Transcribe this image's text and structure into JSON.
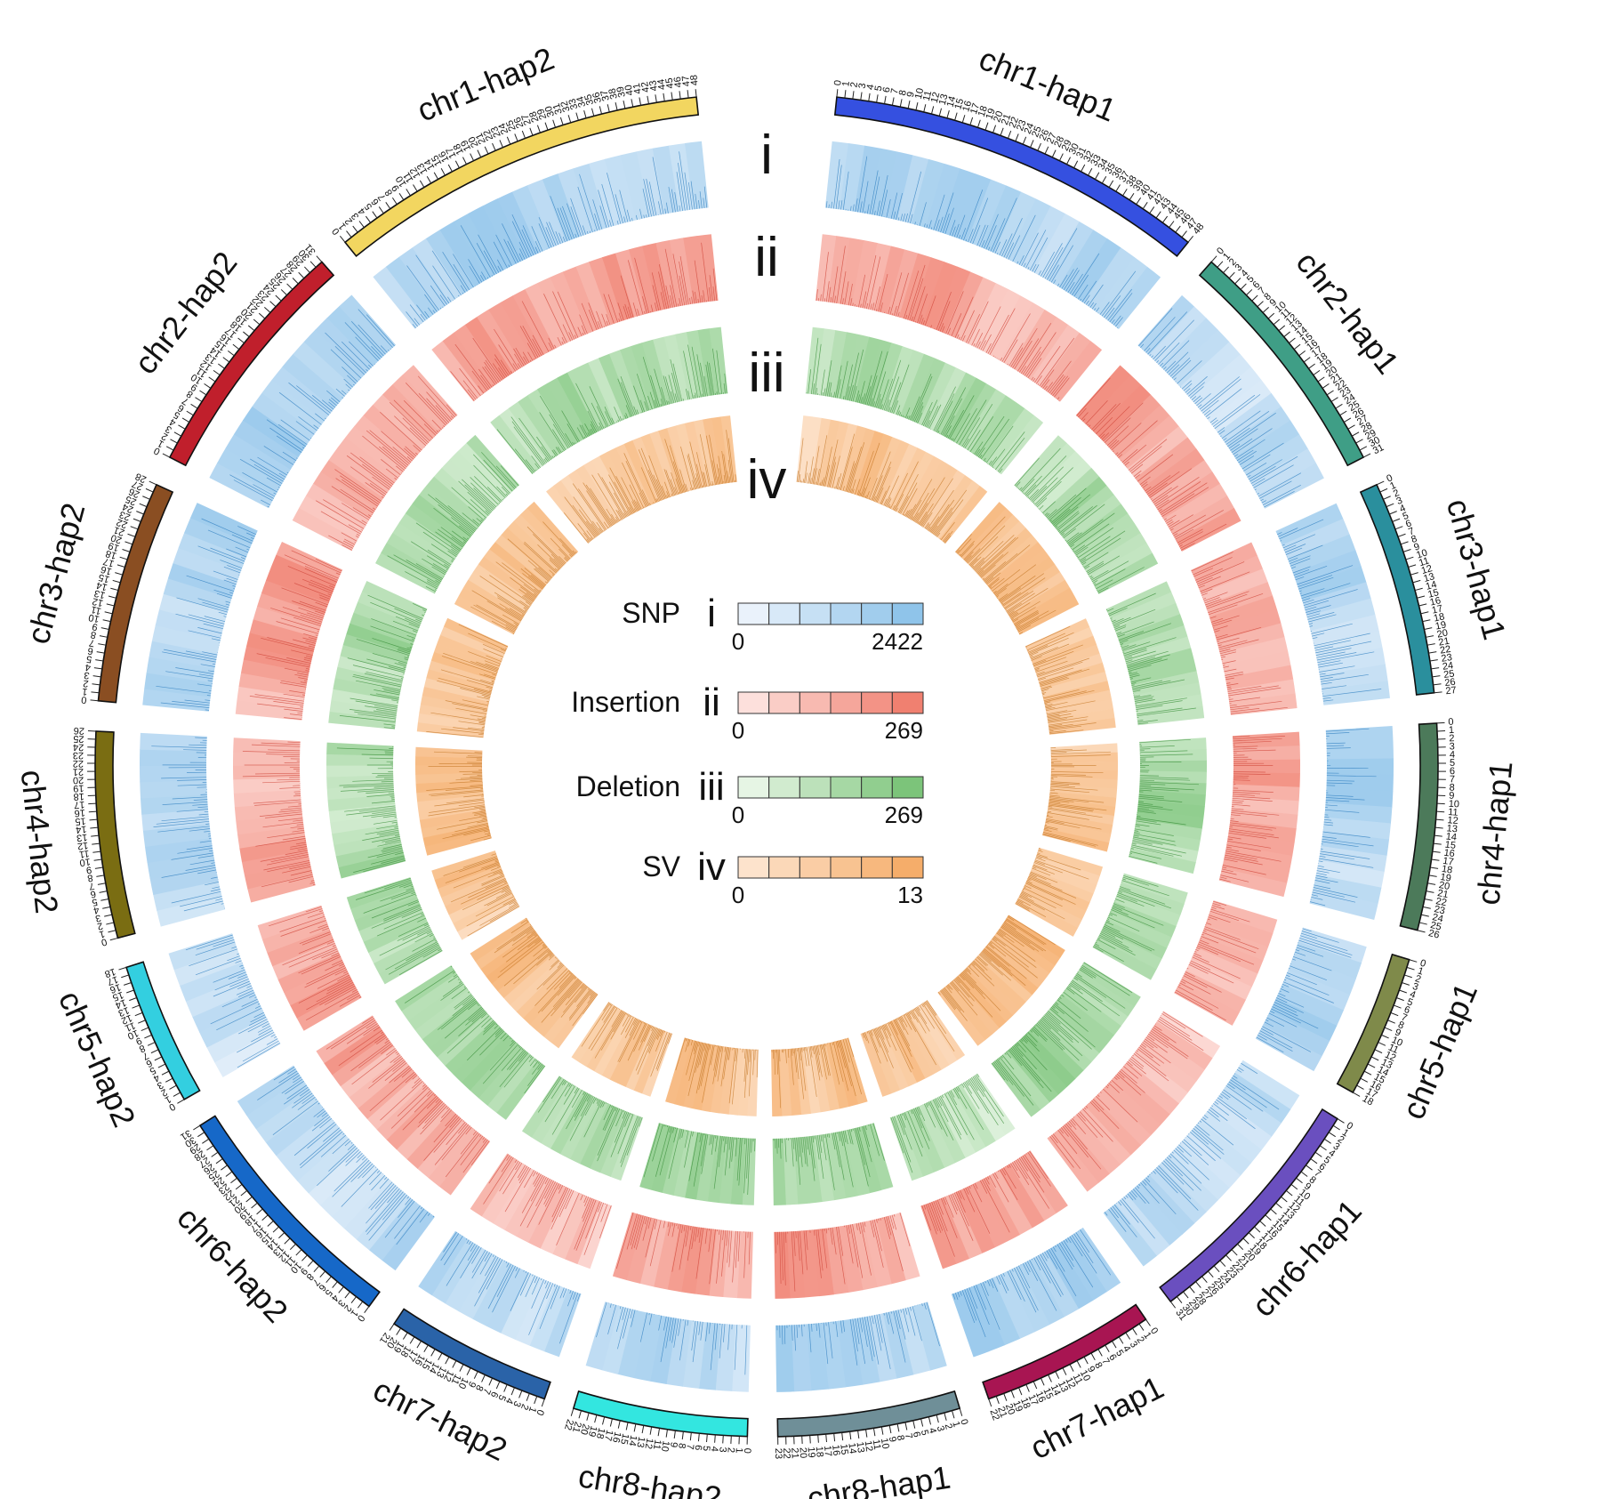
{
  "chart_data": {
    "type": "circos",
    "chromosomes": [
      {
        "name": "chr1-hap1",
        "length": 48,
        "color": "#3550e0"
      },
      {
        "name": "chr2-hap1",
        "length": 31,
        "color": "#3f9e86"
      },
      {
        "name": "chr3-hap1",
        "length": 27,
        "color": "#2a8f9d"
      },
      {
        "name": "chr4-hap1",
        "length": 26,
        "color": "#4c7a5a"
      },
      {
        "name": "chr5-hap1",
        "length": 18,
        "color": "#7f8a4a"
      },
      {
        "name": "chr6-hap1",
        "length": 31,
        "color": "#6a4fbf"
      },
      {
        "name": "chr7-hap1",
        "length": 22,
        "color": "#a81552"
      },
      {
        "name": "chr8-hap1",
        "length": 23,
        "color": "#6f8f98"
      },
      {
        "name": "chr8-hap2",
        "length": 22,
        "color": "#33e6e0"
      },
      {
        "name": "chr7-hap2",
        "length": 21,
        "color": "#2a63a8"
      },
      {
        "name": "chr6-hap2",
        "length": 31,
        "color": "#1668c8"
      },
      {
        "name": "chr5-hap2",
        "length": 18,
        "color": "#33cfe0"
      },
      {
        "name": "chr4-hap2",
        "length": 26,
        "color": "#7a6d12"
      },
      {
        "name": "chr3-hap2",
        "length": 28,
        "color": "#8a4e22"
      },
      {
        "name": "chr2-hap2",
        "length": 31,
        "color": "#c01f2c"
      },
      {
        "name": "chr1-hap2",
        "length": 48,
        "color": "#f2d660"
      }
    ],
    "tracks": [
      {
        "id": "i",
        "name": "SNP",
        "min": 0,
        "max": 2422,
        "color_low": "#eaf2fb",
        "color_high": "#8fc4ea",
        "line": "#2f7fc0"
      },
      {
        "id": "ii",
        "name": "Insertion",
        "min": 0,
        "max": 269,
        "color_low": "#fde0dc",
        "color_high": "#f08070",
        "line": "#d0463a"
      },
      {
        "id": "iii",
        "name": "Deletion",
        "min": 0,
        "max": 269,
        "color_low": "#e6f5e4",
        "color_high": "#7cc47a",
        "line": "#3a8f3a"
      },
      {
        "id": "iv",
        "name": "SV",
        "min": 0,
        "max": 13,
        "color_low": "#fde3cc",
        "color_high": "#f5ad6a",
        "line": "#c57a2a"
      }
    ]
  }
}
